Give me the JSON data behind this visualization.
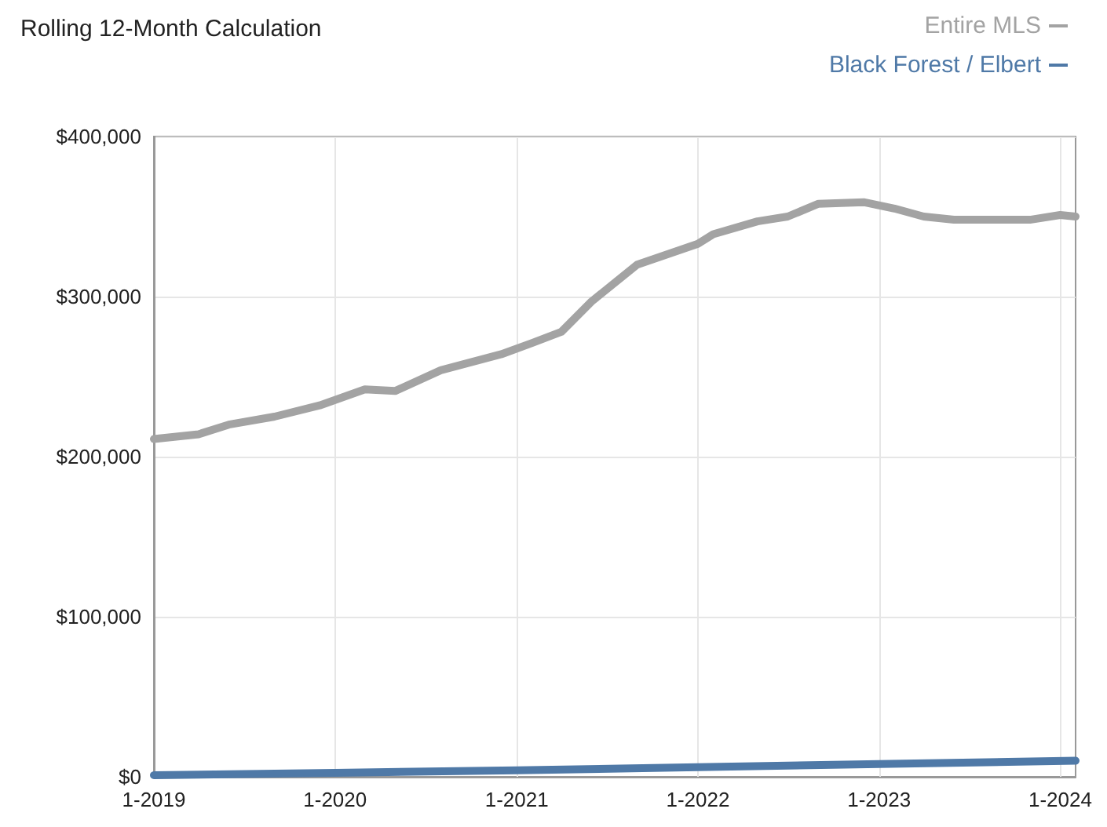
{
  "chart_data": {
    "type": "line",
    "title": "Rolling 12-Month Calculation",
    "series": [
      {
        "name": "Entire MLS",
        "color": "#a3a3a3",
        "x": [
          "2019-01",
          "2019-04",
          "2019-06",
          "2019-09",
          "2019-12",
          "2020-03",
          "2020-05",
          "2020-08",
          "2020-12",
          "2021-02",
          "2021-04",
          "2021-06",
          "2021-09",
          "2022-01",
          "2022-02",
          "2022-05",
          "2022-07",
          "2022-09",
          "2022-12",
          "2023-02",
          "2023-04",
          "2023-06",
          "2023-11",
          "2024-01",
          "2024-02"
        ],
        "values": [
          211000,
          214000,
          220000,
          225000,
          232000,
          242000,
          241000,
          254000,
          264000,
          271000,
          278000,
          297000,
          320000,
          333000,
          339000,
          347000,
          350000,
          358000,
          359000,
          355000,
          350000,
          348000,
          348000,
          351000,
          350000
        ]
      },
      {
        "name": "Black Forest / Elbert",
        "color": "#4f79a7",
        "x": [
          "2019-01",
          "2020-01",
          "2021-01",
          "2022-01",
          "2023-01",
          "2024-02"
        ],
        "values": [
          1000,
          2500,
          4000,
          6000,
          8000,
          10000
        ]
      }
    ],
    "xlim": [
      "2019-01",
      "2024-02"
    ],
    "xticks": [
      {
        "value": "2019-01",
        "label": "1-2019"
      },
      {
        "value": "2020-01",
        "label": "1-2020"
      },
      {
        "value": "2021-01",
        "label": "1-2021"
      },
      {
        "value": "2022-01",
        "label": "1-2022"
      },
      {
        "value": "2023-01",
        "label": "1-2023"
      },
      {
        "value": "2024-01",
        "label": "1-2024"
      }
    ],
    "ylim": [
      0,
      400000
    ],
    "yticks": [
      {
        "value": 0,
        "label": "$0"
      },
      {
        "value": 100000,
        "label": "$100,000"
      },
      {
        "value": 200000,
        "label": "$200,000"
      },
      {
        "value": 300000,
        "label": "$300,000"
      },
      {
        "value": 400000,
        "label": "$400,000"
      }
    ],
    "grid": true,
    "legend": "top right",
    "marker": "none",
    "line_style": "solid"
  }
}
